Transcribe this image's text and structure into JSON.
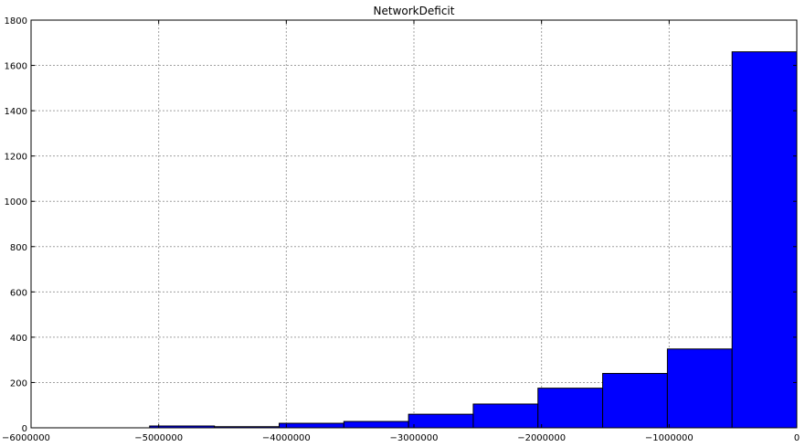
{
  "chart_data": {
    "type": "bar",
    "title": "NetworkDeficit",
    "xlabel": "",
    "ylabel": "",
    "xlim": [
      -6000000,
      0
    ],
    "ylim": [
      0,
      1800
    ],
    "grid": true,
    "color": "#0000ff",
    "bins": [
      {
        "x0": -5071000,
        "x1": -4563000,
        "value": 8
      },
      {
        "x0": -4563000,
        "x1": -4056000,
        "value": 5
      },
      {
        "x0": -4056000,
        "x1": -3549000,
        "value": 20
      },
      {
        "x0": -3549000,
        "x1": -3042000,
        "value": 28
      },
      {
        "x0": -3042000,
        "x1": -2535000,
        "value": 60
      },
      {
        "x0": -2535000,
        "x1": -2028000,
        "value": 105
      },
      {
        "x0": -2028000,
        "x1": -1521000,
        "value": 175
      },
      {
        "x0": -1521000,
        "x1": -1014000,
        "value": 240
      },
      {
        "x0": -1014000,
        "x1": -507000,
        "value": 348
      },
      {
        "x0": -507000,
        "x1": 0,
        "value": 1660
      }
    ],
    "xticks": [
      {
        "value": -6000000,
        "label": "−6000000"
      },
      {
        "value": -5000000,
        "label": "−5000000"
      },
      {
        "value": -4000000,
        "label": "−4000000"
      },
      {
        "value": -3000000,
        "label": "−3000000"
      },
      {
        "value": -2000000,
        "label": "−2000000"
      },
      {
        "value": -1000000,
        "label": "−1000000"
      },
      {
        "value": 0,
        "label": "0"
      }
    ],
    "yticks": [
      {
        "value": 0,
        "label": "0"
      },
      {
        "value": 200,
        "label": "200"
      },
      {
        "value": 400,
        "label": "400"
      },
      {
        "value": 600,
        "label": "600"
      },
      {
        "value": 800,
        "label": "800"
      },
      {
        "value": 1000,
        "label": "1000"
      },
      {
        "value": 1200,
        "label": "1200"
      },
      {
        "value": 1400,
        "label": "1400"
      },
      {
        "value": 1600,
        "label": "1600"
      },
      {
        "value": 1800,
        "label": "1800"
      }
    ]
  }
}
